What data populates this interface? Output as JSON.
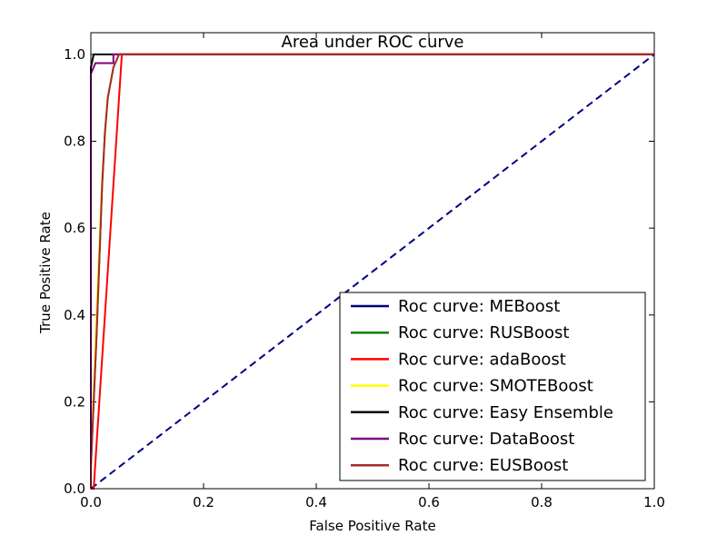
{
  "chart_data": {
    "type": "line",
    "title": "Area under ROC curve",
    "xlabel": "False Positive Rate",
    "ylabel": "True Positive Rate",
    "xlim": [
      0.0,
      1.0
    ],
    "ylim": [
      0.0,
      1.05
    ],
    "xticks": [
      "0.0",
      "0.2",
      "0.4",
      "0.6",
      "0.8",
      "1.0"
    ],
    "yticks": [
      "0.0",
      "0.2",
      "0.4",
      "0.6",
      "0.8",
      "1.0"
    ],
    "legend_position": "lower-right",
    "series": [
      {
        "name": "Roc curve: MEBoost",
        "color": "#000080",
        "dash": "dashed",
        "x": [
          0.0,
          1.0
        ],
        "y": [
          0.0,
          1.0
        ]
      },
      {
        "name": "Roc curve: RUSBoost",
        "color": "#008000",
        "dash": "solid",
        "x": [
          0.0,
          0.0,
          0.01,
          0.02,
          0.025,
          0.03,
          0.04,
          0.05,
          1.0
        ],
        "y": [
          0.0,
          0.05,
          0.35,
          0.7,
          0.82,
          0.9,
          0.97,
          1.0,
          1.0
        ]
      },
      {
        "name": "Roc curve: adaBoost",
        "color": "#ff0000",
        "dash": "solid",
        "x": [
          0.0,
          0.005,
          0.055,
          1.0
        ],
        "y": [
          0.0,
          0.0,
          1.0,
          1.0
        ]
      },
      {
        "name": "Roc curve: SMOTEBoost",
        "color": "#ffff00",
        "dash": "solid",
        "x": [
          0.0,
          0.0,
          0.01,
          0.02,
          0.03,
          0.04,
          0.05,
          1.0
        ],
        "y": [
          0.0,
          0.05,
          0.4,
          0.72,
          0.9,
          0.97,
          1.0,
          1.0
        ]
      },
      {
        "name": "Roc curve: Easy Ensemble",
        "color": "#000000",
        "dash": "solid",
        "x": [
          0.0,
          0.0,
          0.005,
          0.02,
          1.0
        ],
        "y": [
          0.0,
          0.97,
          1.0,
          1.0,
          1.0
        ]
      },
      {
        "name": "Roc curve: DataBoost",
        "color": "#800080",
        "dash": "solid",
        "x": [
          0.0,
          0.0,
          0.008,
          0.008,
          0.04,
          0.04,
          1.0
        ],
        "y": [
          0.0,
          0.955,
          0.98,
          0.98,
          0.98,
          1.0,
          1.0
        ]
      },
      {
        "name": "Roc curve: EUSBoost",
        "color": "#a52a2a",
        "dash": "solid",
        "x": [
          0.0,
          0.0,
          0.01,
          0.02,
          0.025,
          0.03,
          0.04,
          0.05,
          1.0
        ],
        "y": [
          0.0,
          0.05,
          0.35,
          0.7,
          0.82,
          0.9,
          0.97,
          1.0,
          1.0
        ]
      }
    ]
  }
}
